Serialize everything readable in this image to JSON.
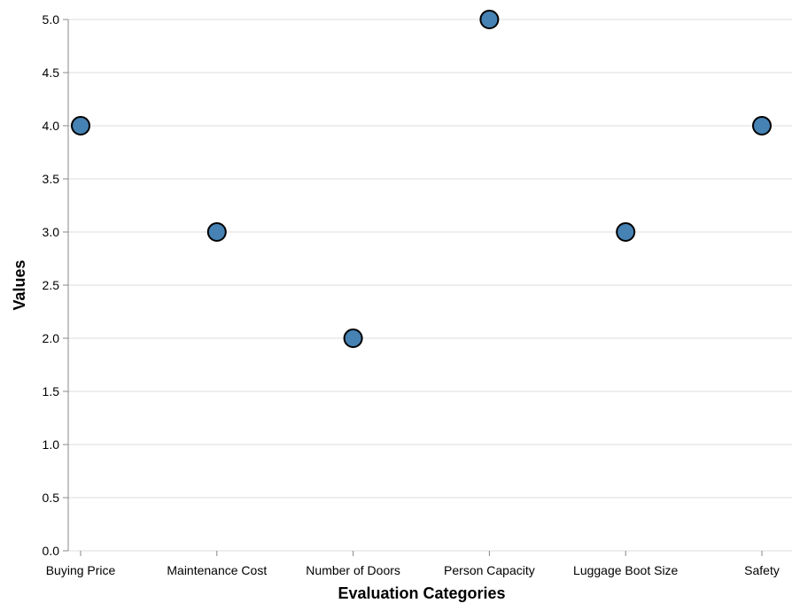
{
  "chart_data": {
    "type": "scatter",
    "title": "",
    "xlabel": "Evaluation Categories",
    "ylabel": "Values",
    "categories": [
      "Buying Price",
      "Maintenance Cost",
      "Number of Doors",
      "Person Capacity",
      "Luggage Boot Size",
      "Safety"
    ],
    "values": [
      4,
      3,
      2,
      5,
      3,
      4
    ],
    "ylim": [
      0,
      5
    ],
    "yticks": [
      "0.0",
      "0.5",
      "1.0",
      "1.5",
      "2.0",
      "2.5",
      "3.0",
      "3.5",
      "4.0",
      "4.5",
      "5.0"
    ],
    "grid": true,
    "legend": "none",
    "colors": {
      "marker_fill": "#4682b4",
      "marker_stroke": "#000000",
      "grid": "#dddddd",
      "axis": "#888888"
    }
  }
}
